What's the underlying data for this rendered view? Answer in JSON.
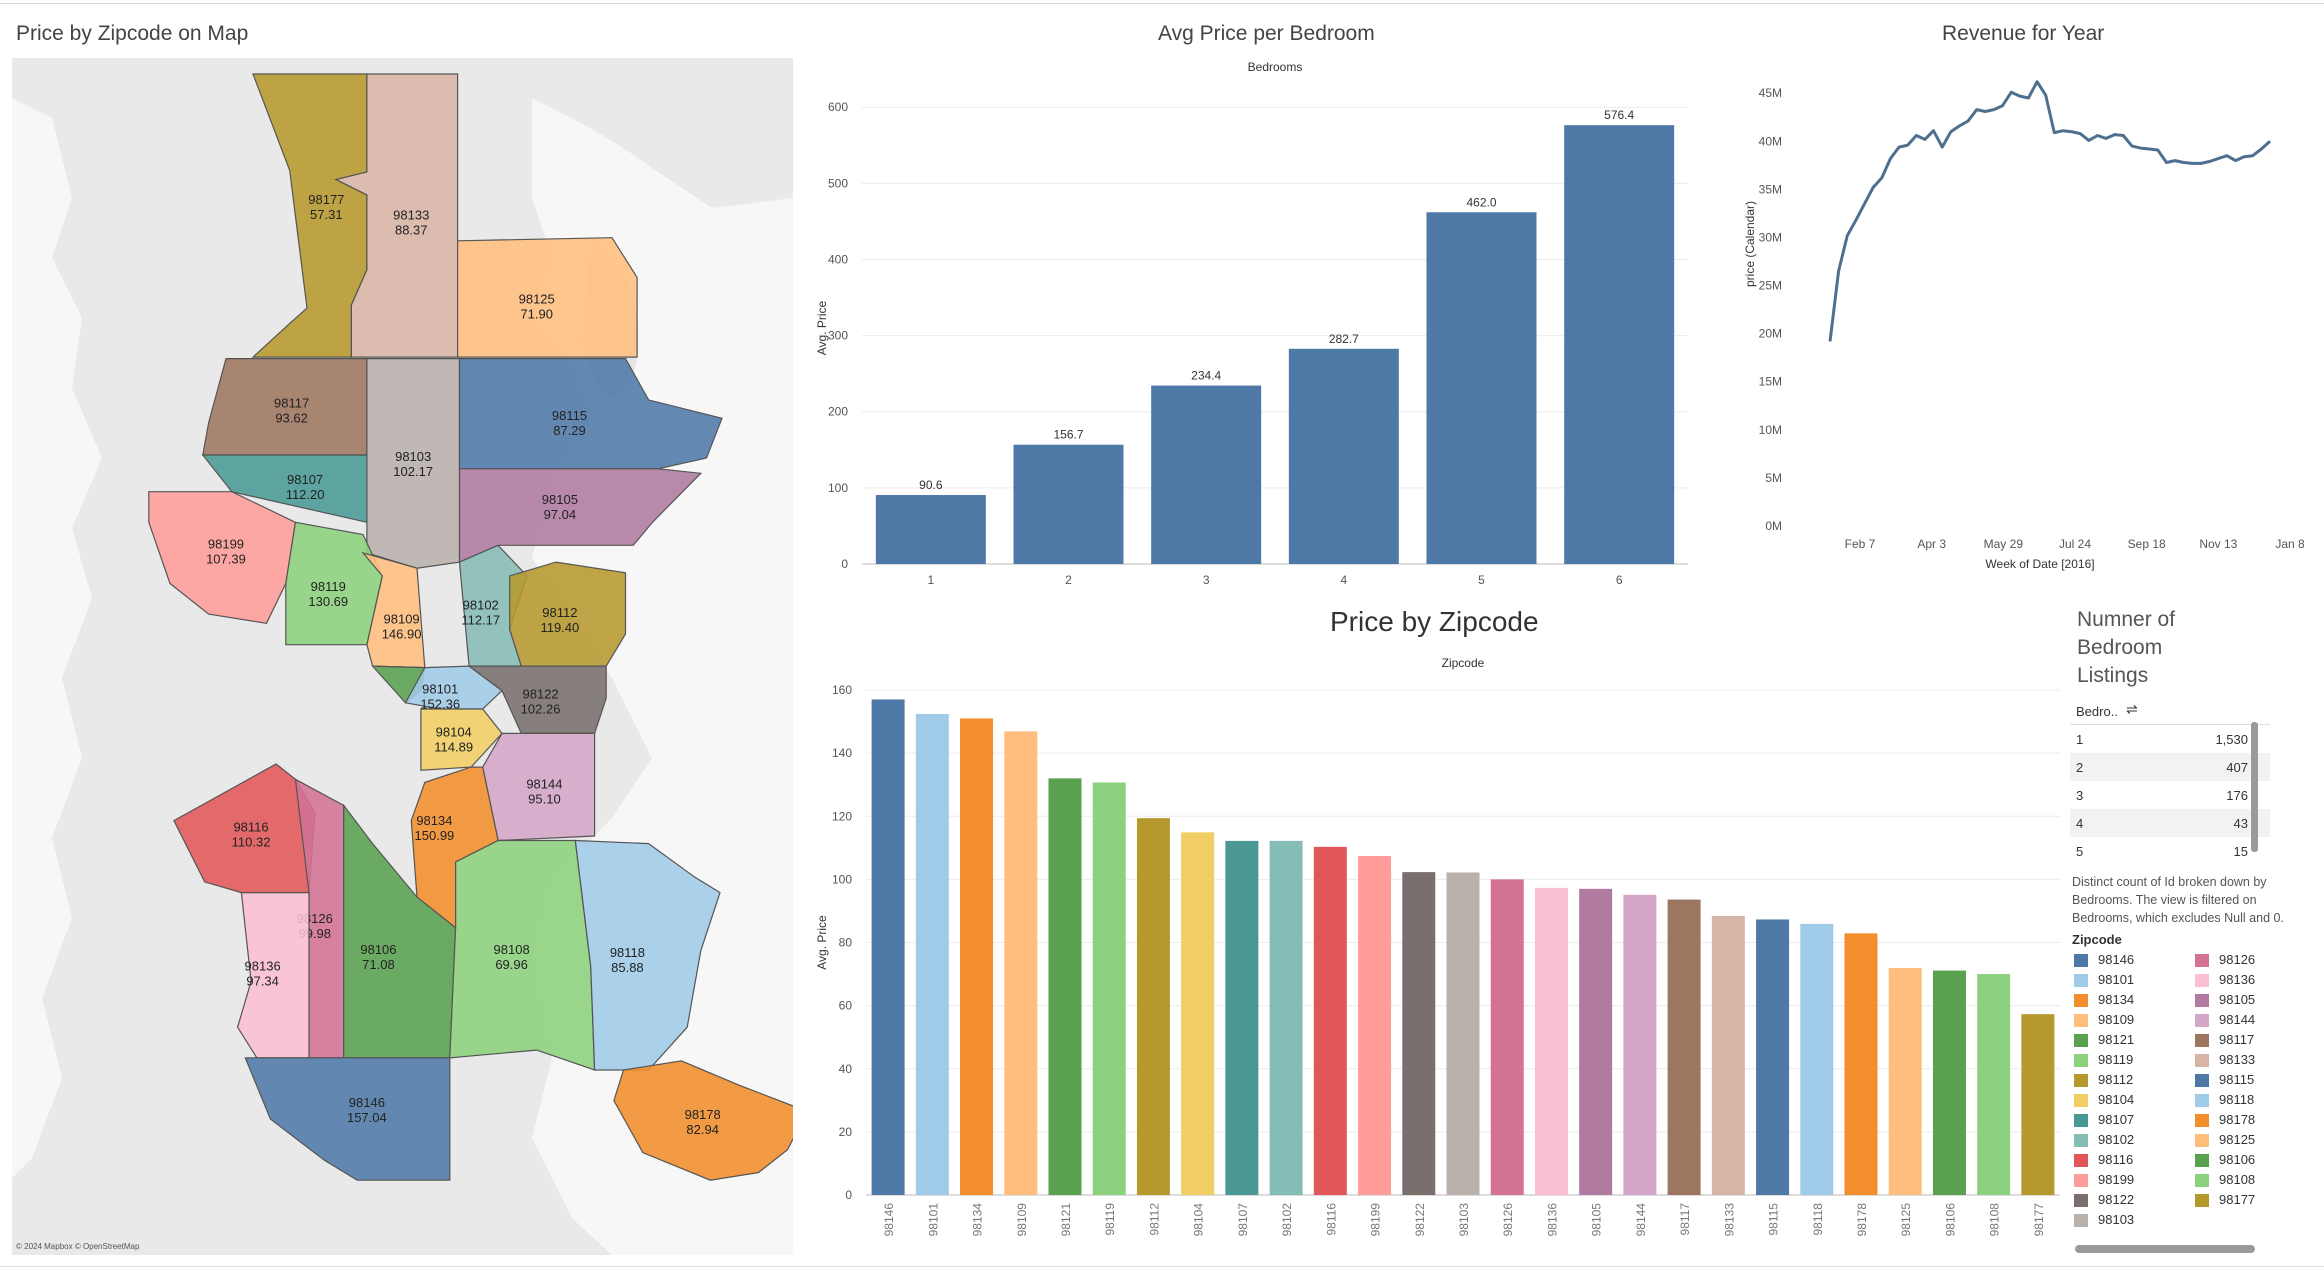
{
  "titles": {
    "map": "Price by Zipcode on Map",
    "bedroom_chart": "Avg Price per Bedroom",
    "revenue": "Revenue for Year",
    "zipcode_chart": "Price by Zipcode",
    "listings": "Numner of Bedroom Listings"
  },
  "map": {
    "credit": "© 2024 Mapbox © OpenStreetMap",
    "regions": [
      {
        "zip": "98177",
        "price": "57.31",
        "color": "#b7992d"
      },
      {
        "zip": "98133",
        "price": "88.37",
        "color": "#d9b5a5"
      },
      {
        "zip": "98125",
        "price": "71.90",
        "color": "#ffbf7d"
      },
      {
        "zip": "98117",
        "price": "93.62",
        "color": "#9d7660"
      },
      {
        "zip": "98103",
        "price": "102.17",
        "color": "#bab0ac"
      },
      {
        "zip": "98115",
        "price": "87.29",
        "color": "#4e79a7"
      },
      {
        "zip": "98107",
        "price": "112.20",
        "color": "#499894"
      },
      {
        "zip": "98105",
        "price": "97.04",
        "color": "#b07aa1"
      },
      {
        "zip": "98199",
        "price": "107.39",
        "color": "#ff9d9a"
      },
      {
        "zip": "98119",
        "price": "130.69",
        "color": "#8cd17d"
      },
      {
        "zip": "98109",
        "price": "146.90",
        "color": "#ffbe7d"
      },
      {
        "zip": "98102",
        "price": "112.17",
        "color": "#86bcb6"
      },
      {
        "zip": "98112",
        "price": "119.40",
        "color": "#b6992d"
      },
      {
        "zip": "98121",
        "price": "",
        "color": "#59a14f"
      },
      {
        "zip": "98101",
        "price": "152.36",
        "color": "#a0cbe8"
      },
      {
        "zip": "98122",
        "price": "102.26",
        "color": "#79706e"
      },
      {
        "zip": "98104",
        "price": "114.89",
        "color": "#f1ce63"
      },
      {
        "zip": "98144",
        "price": "95.10",
        "color": "#d4a6c8"
      },
      {
        "zip": "98116",
        "price": "110.32",
        "color": "#e15759"
      },
      {
        "zip": "98134",
        "price": "150.99",
        "color": "#f28e2b"
      },
      {
        "zip": "98126",
        "price": "99.98",
        "color": "#d37295"
      },
      {
        "zip": "98136",
        "price": "97.34",
        "color": "#fabfd2"
      },
      {
        "zip": "98106",
        "price": "71.08",
        "color": "#59a14f"
      },
      {
        "zip": "98108",
        "price": "69.96",
        "color": "#8cd17d"
      },
      {
        "zip": "98118",
        "price": "85.88",
        "color": "#a0cbe8"
      },
      {
        "zip": "98146",
        "price": "157.04",
        "color": "#4e79a7"
      },
      {
        "zip": "98178",
        "price": "82.94",
        "color": "#f28e2b"
      }
    ]
  },
  "chart_data": [
    {
      "type": "bar",
      "title": "Avg Price per Bedroom",
      "header": "Bedrooms",
      "xlabel": "",
      "ylabel": "Avg. Price",
      "categories": [
        "1",
        "2",
        "3",
        "4",
        "5",
        "6"
      ],
      "values": [
        90.6,
        156.7,
        234.4,
        282.7,
        462.0,
        576.4
      ],
      "labels": [
        "90.6",
        "156.7",
        "234.4",
        "282.7",
        "462.0",
        "576.4"
      ],
      "yticks": [
        "0",
        "100",
        "200",
        "300",
        "400",
        "500",
        "600"
      ],
      "ylim": [
        0,
        620
      ],
      "color": "#4e79a7",
      "grid": true
    },
    {
      "type": "line",
      "title": "Revenue for Year",
      "xlabel": "Week of Date [2016]",
      "ylabel": "price (Calendar)",
      "xticks": [
        "Feb 7",
        "Apr 3",
        "May 29",
        "Jul 24",
        "Sep 18",
        "Nov 13",
        "Jan 8"
      ],
      "yticks": [
        "0M",
        "5M",
        "10M",
        "15M",
        "20M",
        "25M",
        "30M",
        "35M",
        "40M",
        "45M"
      ],
      "ylim": [
        0,
        47
      ],
      "values": [
        19.2,
        26.5,
        30.2,
        31.8,
        33.5,
        35.2,
        36.2,
        38.2,
        39.4,
        39.6,
        40.6,
        40.2,
        41.1,
        39.4,
        41.0,
        41.6,
        42.1,
        43.3,
        43.1,
        43.3,
        43.7,
        45.1,
        44.7,
        44.5,
        46.2,
        44.8,
        40.9,
        41.1,
        41.0,
        40.8,
        40.1,
        40.6,
        40.3,
        40.7,
        40.6,
        39.5,
        39.3,
        39.2,
        39.1,
        37.8,
        38.0,
        37.8,
        37.7,
        37.7,
        37.9,
        38.2,
        38.5,
        38.0,
        38.4,
        38.5,
        39.2,
        40.0
      ],
      "color": "#4e6f8e",
      "grid": false
    },
    {
      "type": "bar",
      "title": "Price by Zipcode",
      "header": "Zipcode",
      "xlabel": "",
      "ylabel": "Avg. Price",
      "categories": [
        "98146",
        "98101",
        "98134",
        "98109",
        "98121",
        "98119",
        "98112",
        "98104",
        "98107",
        "98102",
        "98116",
        "98199",
        "98122",
        "98103",
        "98126",
        "98136",
        "98105",
        "98144",
        "98117",
        "98133",
        "98115",
        "98118",
        "98178",
        "98125",
        "98106",
        "98108",
        "98177"
      ],
      "values": [
        157.0,
        152.4,
        151.0,
        146.9,
        132.0,
        130.7,
        119.4,
        114.9,
        112.2,
        112.2,
        110.3,
        107.4,
        102.3,
        102.2,
        100.0,
        97.3,
        97.0,
        95.1,
        93.6,
        88.4,
        87.3,
        85.9,
        82.9,
        71.9,
        71.1,
        70.0,
        57.3
      ],
      "colors": [
        "#4e79a7",
        "#a0cbe8",
        "#f28e2b",
        "#ffbe7d",
        "#59a14f",
        "#8cd17d",
        "#b6992d",
        "#f1ce63",
        "#499894",
        "#86bcb6",
        "#e15759",
        "#ff9d9a",
        "#79706e",
        "#bab0ac",
        "#d37295",
        "#fabfd2",
        "#b07aa1",
        "#d4a6c8",
        "#9d7660",
        "#d7b5a6",
        "#4e79a7",
        "#a0cbe8",
        "#f28e2b",
        "#ffbe7d",
        "#59a14f",
        "#8cd17d",
        "#b6992d"
      ],
      "yticks": [
        "0",
        "20",
        "40",
        "60",
        "80",
        "100",
        "120",
        "140",
        "160"
      ],
      "ylim": [
        0,
        160
      ],
      "grid": true
    },
    {
      "type": "table",
      "title": "Numner of Bedroom Listings",
      "columns": [
        "Bedro..",
        ""
      ],
      "rows": [
        [
          "1",
          "1,530"
        ],
        [
          "2",
          "407"
        ],
        [
          "3",
          "176"
        ],
        [
          "4",
          "43"
        ],
        [
          "5",
          "15"
        ]
      ]
    }
  ],
  "listings": {
    "column_label": "Bedro..",
    "sort_icon": "sort-icon",
    "rows": [
      {
        "bed": "1",
        "count": "1,530"
      },
      {
        "bed": "2",
        "count": "407"
      },
      {
        "bed": "3",
        "count": "176"
      },
      {
        "bed": "4",
        "count": "43"
      },
      {
        "bed": "5",
        "count": "15"
      }
    ],
    "note": "Distinct count of Id broken down by Bedrooms. The view is filtered on Bedrooms, which excludes Null and 0."
  },
  "legend": {
    "title": "Zipcode",
    "items": [
      {
        "zip": "98146",
        "color": "#4e79a7"
      },
      {
        "zip": "98101",
        "color": "#a0cbe8"
      },
      {
        "zip": "98134",
        "color": "#f28e2b"
      },
      {
        "zip": "98109",
        "color": "#ffbe7d"
      },
      {
        "zip": "98121",
        "color": "#59a14f"
      },
      {
        "zip": "98119",
        "color": "#8cd17d"
      },
      {
        "zip": "98112",
        "color": "#b6992d"
      },
      {
        "zip": "98104",
        "color": "#f1ce63"
      },
      {
        "zip": "98107",
        "color": "#499894"
      },
      {
        "zip": "98102",
        "color": "#86bcb6"
      },
      {
        "zip": "98116",
        "color": "#e15759"
      },
      {
        "zip": "98199",
        "color": "#ff9d9a"
      },
      {
        "zip": "98122",
        "color": "#79706e"
      },
      {
        "zip": "98103",
        "color": "#bab0ac"
      },
      {
        "zip": "98126",
        "color": "#d37295"
      },
      {
        "zip": "98136",
        "color": "#fabfd2"
      },
      {
        "zip": "98105",
        "color": "#b07aa1"
      },
      {
        "zip": "98144",
        "color": "#d4a6c8"
      },
      {
        "zip": "98117",
        "color": "#9d7660"
      },
      {
        "zip": "98133",
        "color": "#d7b5a6"
      },
      {
        "zip": "98115",
        "color": "#4e79a7"
      },
      {
        "zip": "98118",
        "color": "#a0cbe8"
      },
      {
        "zip": "98178",
        "color": "#f28e2b"
      },
      {
        "zip": "98125",
        "color": "#ffbe7d"
      },
      {
        "zip": "98106",
        "color": "#59a14f"
      },
      {
        "zip": "98108",
        "color": "#8cd17d"
      },
      {
        "zip": "98177",
        "color": "#b6992d"
      }
    ]
  }
}
